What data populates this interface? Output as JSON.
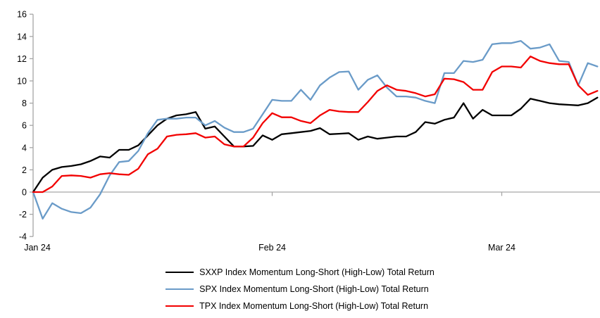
{
  "chart_data": {
    "type": "line",
    "title": "",
    "xlabel": "",
    "ylabel": "",
    "y_axis": {
      "min": -4,
      "max": 16,
      "step": 2
    },
    "grid": "zero-line-only",
    "legend_position": "bottom",
    "axis_color": "#A6A6A6",
    "n_points": 60,
    "x_ticks": [
      {
        "index": 0,
        "label": "Jan 24"
      },
      {
        "index": 25,
        "label": "Feb 24"
      },
      {
        "index": 49,
        "label": "Mar 24"
      }
    ],
    "series": [
      {
        "name": "SXXP Index Momentum Long-Short (High-Low) Total Return",
        "color": "#000000",
        "values": [
          0,
          1.3,
          2.0,
          2.25,
          2.35,
          2.5,
          2.8,
          3.2,
          3.1,
          3.8,
          3.8,
          4.2,
          5.1,
          6.0,
          6.6,
          6.9,
          7.0,
          7.2,
          5.7,
          5.9,
          5.0,
          4.1,
          4.1,
          4.15,
          5.1,
          4.7,
          5.2,
          5.3,
          5.4,
          5.5,
          5.75,
          5.2,
          5.25,
          5.3,
          4.7,
          5.0,
          4.8,
          4.9,
          5.0,
          5.0,
          5.4,
          6.3,
          6.15,
          6.5,
          6.7,
          8.0,
          6.6,
          7.4,
          6.9,
          6.9,
          6.9,
          7.5,
          8.4,
          8.2,
          8.0,
          7.9,
          7.85,
          7.8,
          8.0,
          8.5
        ]
      },
      {
        "name": "SPX Index Momentum Long-Short (High-Low) Total Return",
        "color": "#6A9BC8",
        "values": [
          0,
          -2.4,
          -1.0,
          -1.5,
          -1.8,
          -1.9,
          -1.4,
          -0.2,
          1.5,
          2.7,
          2.8,
          3.7,
          5.3,
          6.5,
          6.6,
          6.6,
          6.7,
          6.7,
          6.0,
          6.4,
          5.8,
          5.4,
          5.4,
          5.7,
          7.0,
          8.3,
          8.2,
          8.2,
          9.2,
          8.3,
          9.6,
          10.3,
          10.8,
          10.85,
          9.2,
          10.1,
          10.5,
          9.4,
          8.6,
          8.6,
          8.5,
          8.2,
          8.0,
          10.7,
          10.7,
          11.8,
          11.7,
          11.9,
          13.3,
          13.4,
          13.4,
          13.6,
          12.9,
          13.0,
          13.3,
          11.8,
          11.7,
          9.6,
          11.6,
          11.3
        ]
      },
      {
        "name": "TPX Index Momentum Long-Short (High-Low) Total Return",
        "color": "#F20000",
        "values": [
          0,
          0,
          0.5,
          1.45,
          1.5,
          1.45,
          1.3,
          1.6,
          1.7,
          1.6,
          1.55,
          2.1,
          3.4,
          3.9,
          5.0,
          5.15,
          5.2,
          5.3,
          4.9,
          5.0,
          4.3,
          4.1,
          4.1,
          4.9,
          6.2,
          7.1,
          6.73,
          6.73,
          6.4,
          6.2,
          6.9,
          7.4,
          7.25,
          7.2,
          7.2,
          8.1,
          9.1,
          9.6,
          9.2,
          9.1,
          8.9,
          8.6,
          8.8,
          10.2,
          10.15,
          9.9,
          9.2,
          9.2,
          10.8,
          11.3,
          11.3,
          11.2,
          12.2,
          11.8,
          11.6,
          11.5,
          11.5,
          9.6,
          8.75,
          9.1
        ]
      }
    ]
  }
}
